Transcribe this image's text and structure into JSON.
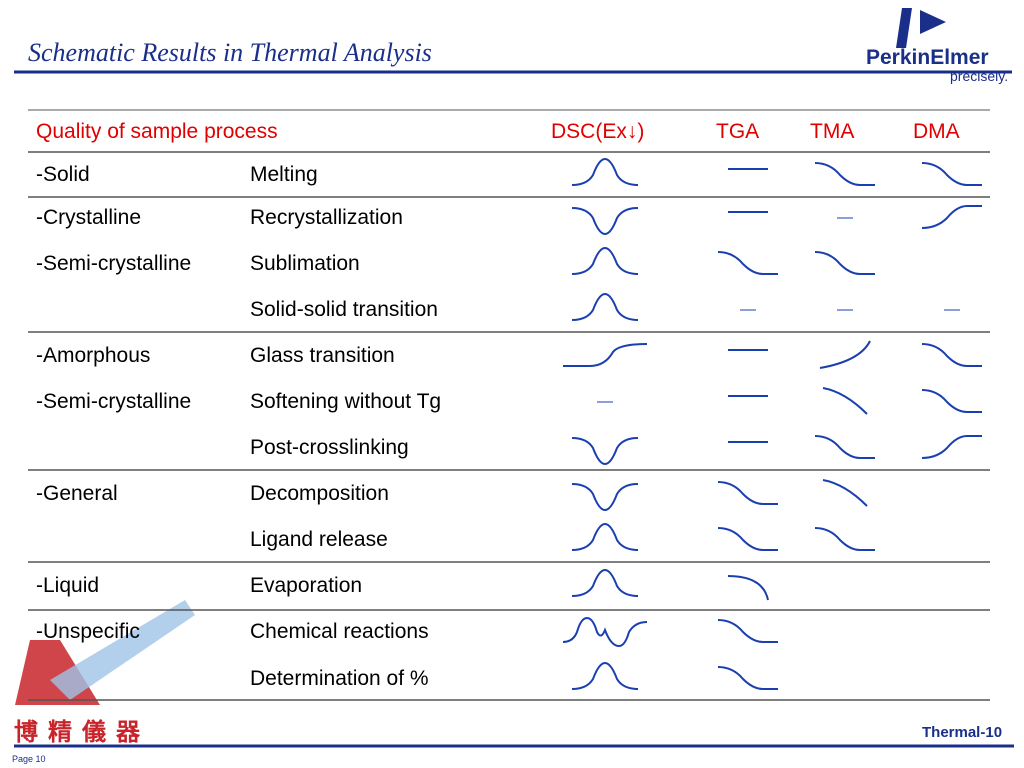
{
  "header": {
    "title": "Schematic Results in Thermal Analysis",
    "logo": "PerkinElmer",
    "tagline": "precisely."
  },
  "table": {
    "columns": [
      "Quality of sample process",
      "DSC(Ex↓)",
      "TGA",
      "TMA",
      "DMA"
    ],
    "rows": [
      {
        "sample": "-Solid",
        "process": "Melting"
      },
      {
        "sample": "-Crystalline",
        "process": "Recrystallization"
      },
      {
        "sample": "-Semi-crystalline",
        "process": "Sublimation"
      },
      {
        "process": "Solid-solid transition"
      },
      {
        "sample": "-Amorphous",
        "process": "Glass transition"
      },
      {
        "sample": "-Semi-crystalline",
        "process": "Softening without Tg"
      },
      {
        "process": "Post-crosslinking"
      },
      {
        "sample": "-General",
        "process": "Decomposition"
      },
      {
        "process": "Ligand release"
      },
      {
        "sample": "-Liquid",
        "process": "Evaporation"
      },
      {
        "sample": "-Unspecific",
        "process": "Chemical reactions"
      },
      {
        "process": "Determination of %"
      }
    ]
  },
  "footer": {
    "company": "博 精 儀 器",
    "slide": "Thermal-10",
    "page": "Page 10"
  }
}
